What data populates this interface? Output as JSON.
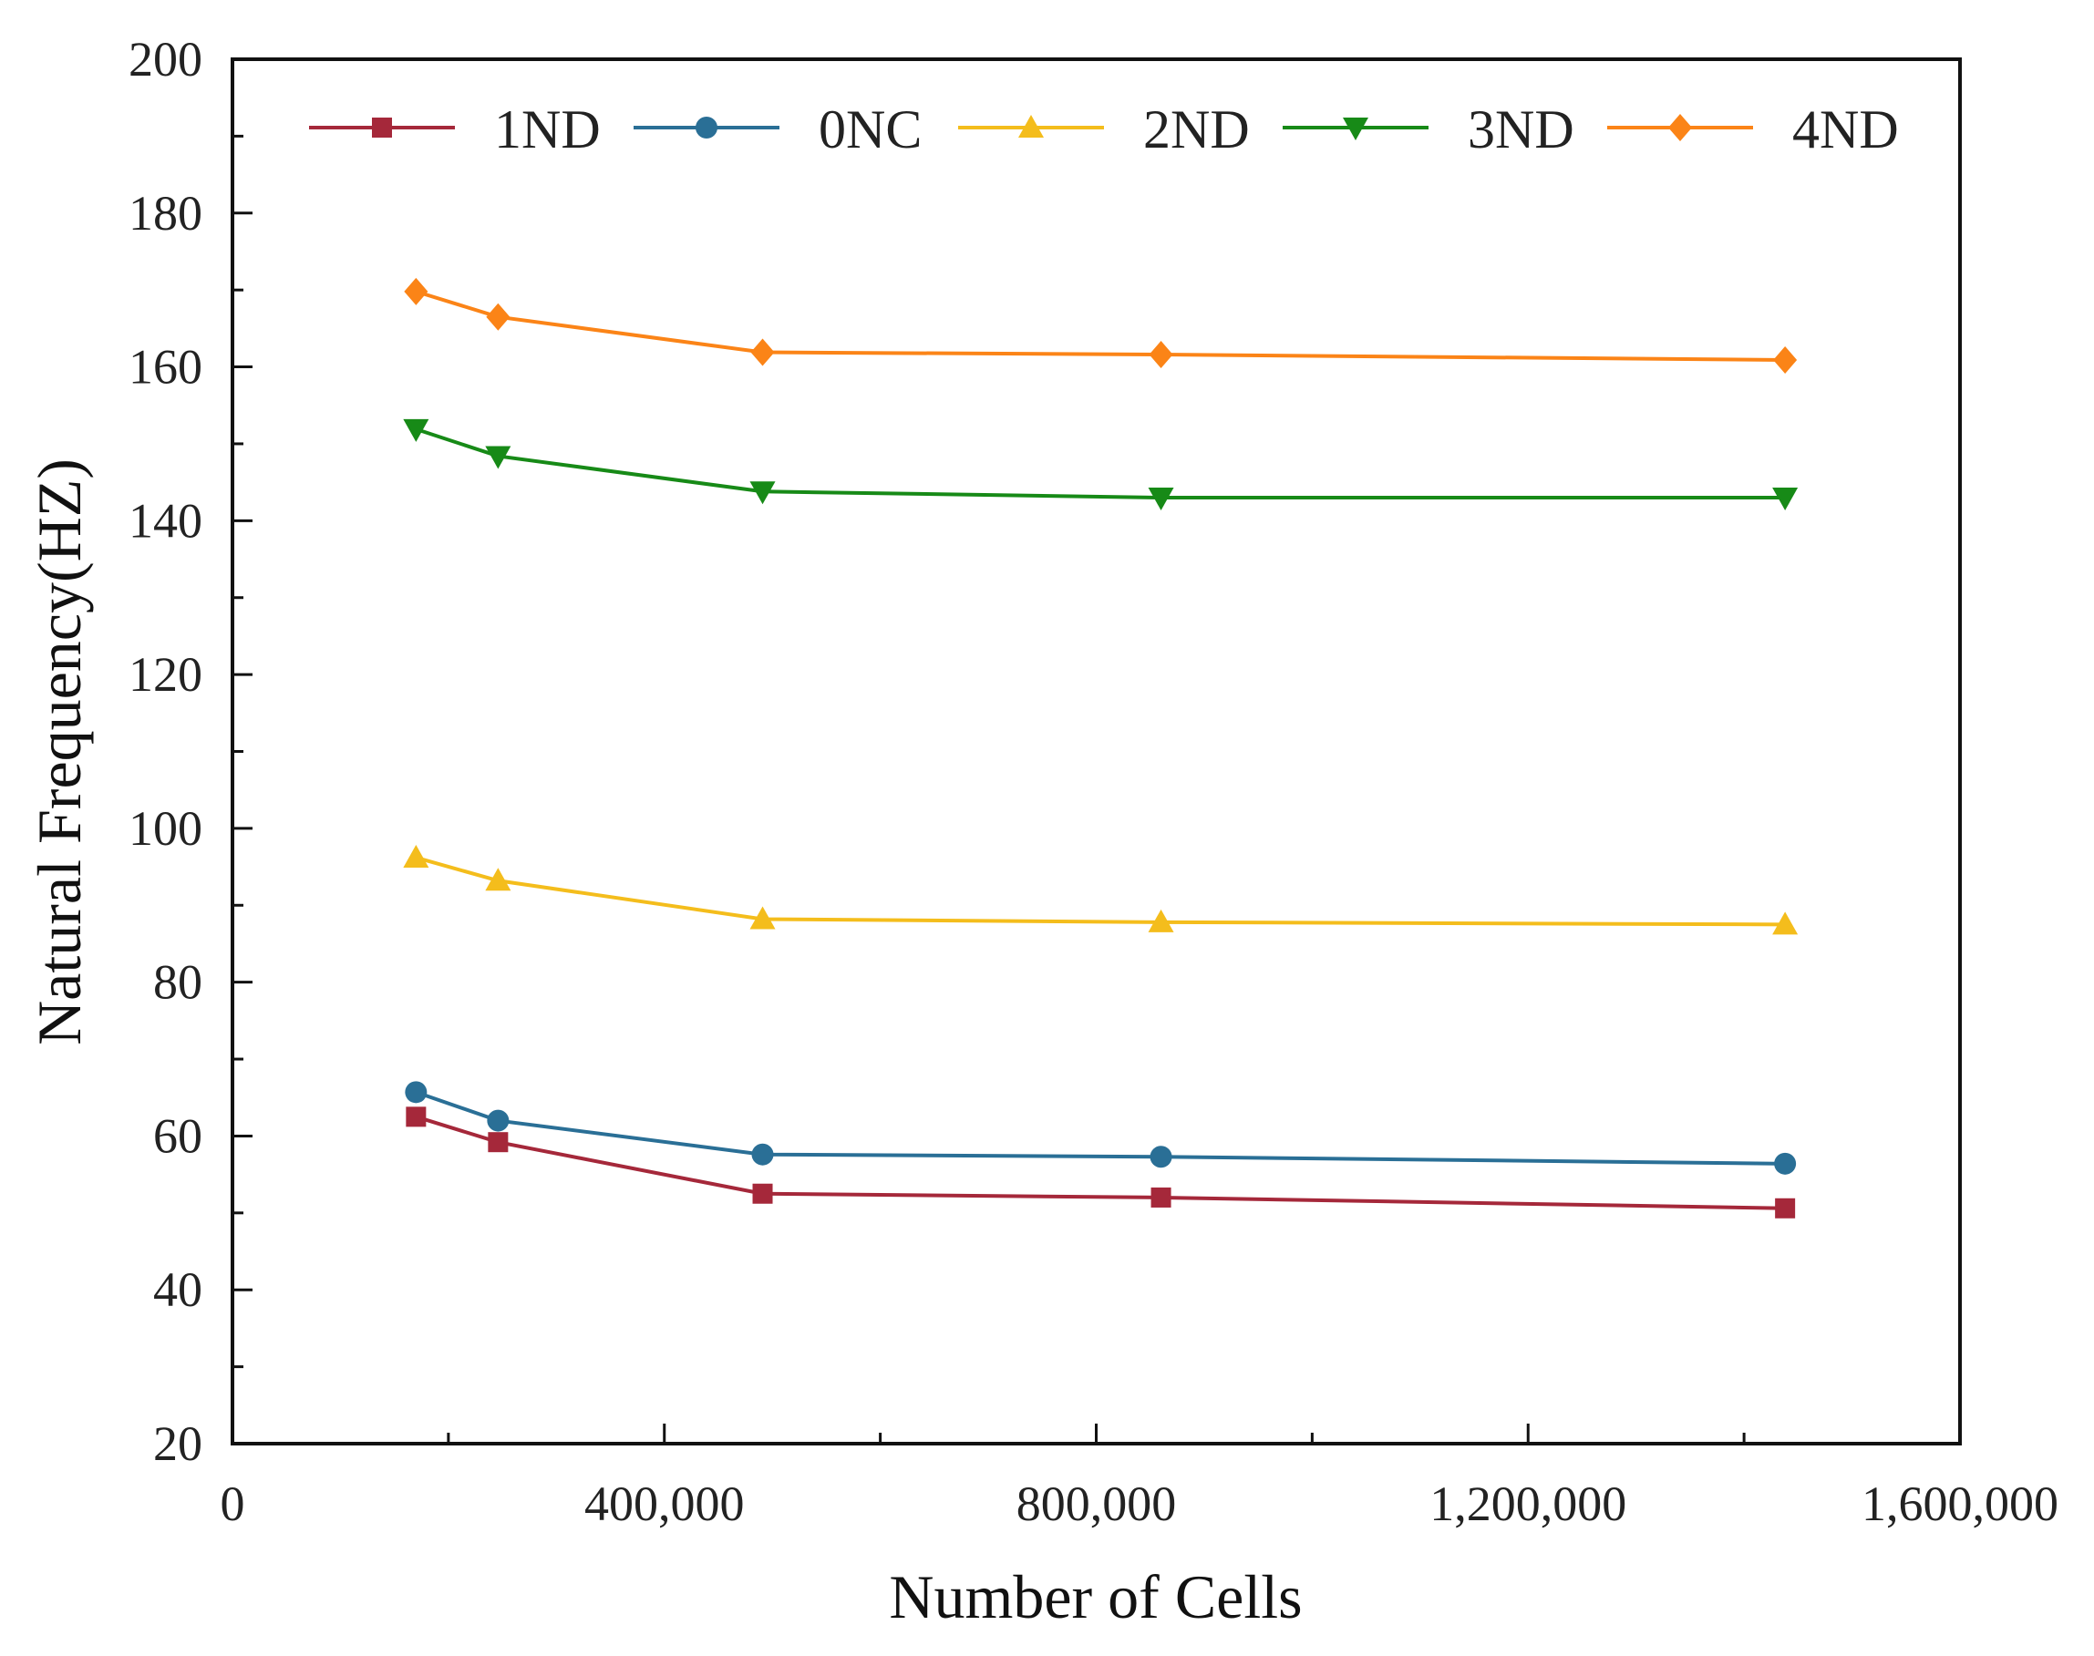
{
  "chart_data": {
    "type": "line",
    "title": "",
    "xlabel": "Number of Cells",
    "ylabel": "Natural Frequency(HZ)",
    "xlim": [
      0,
      1600000
    ],
    "ylim": [
      20,
      200
    ],
    "x_ticks": [
      0,
      400000,
      800000,
      1200000,
      1600000
    ],
    "x_tick_labels": [
      "0",
      "400,000",
      "800,000",
      "1,200,000",
      "1,600,000"
    ],
    "y_ticks": [
      20,
      40,
      60,
      80,
      100,
      120,
      140,
      160,
      180,
      200
    ],
    "y_tick_labels": [
      "20",
      "40",
      "60",
      "80",
      "100",
      "120",
      "140",
      "160",
      "180",
      "200"
    ],
    "grid": false,
    "legend_position": "top",
    "x": [
      170000,
      246000,
      491000,
      860000,
      1438000
    ],
    "series": [
      {
        "name": "1ND",
        "color": "#a5283a",
        "marker": "square",
        "values": [
          62.5,
          59.2,
          52.5,
          52.0,
          50.6
        ]
      },
      {
        "name": "0NC",
        "color": "#2a6f96",
        "marker": "circle",
        "values": [
          65.7,
          62.0,
          57.6,
          57.3,
          56.4
        ]
      },
      {
        "name": "2ND",
        "color": "#f4bd1c",
        "marker": "triangle-up",
        "values": [
          96.2,
          93.2,
          88.2,
          87.8,
          87.5
        ]
      },
      {
        "name": "3ND",
        "color": "#178a17",
        "marker": "triangle-down",
        "values": [
          151.9,
          148.4,
          143.8,
          143.0,
          143.0
        ]
      },
      {
        "name": "4ND",
        "color": "#fb8417",
        "marker": "diamond",
        "values": [
          169.8,
          166.5,
          161.9,
          161.6,
          160.9
        ]
      }
    ]
  }
}
